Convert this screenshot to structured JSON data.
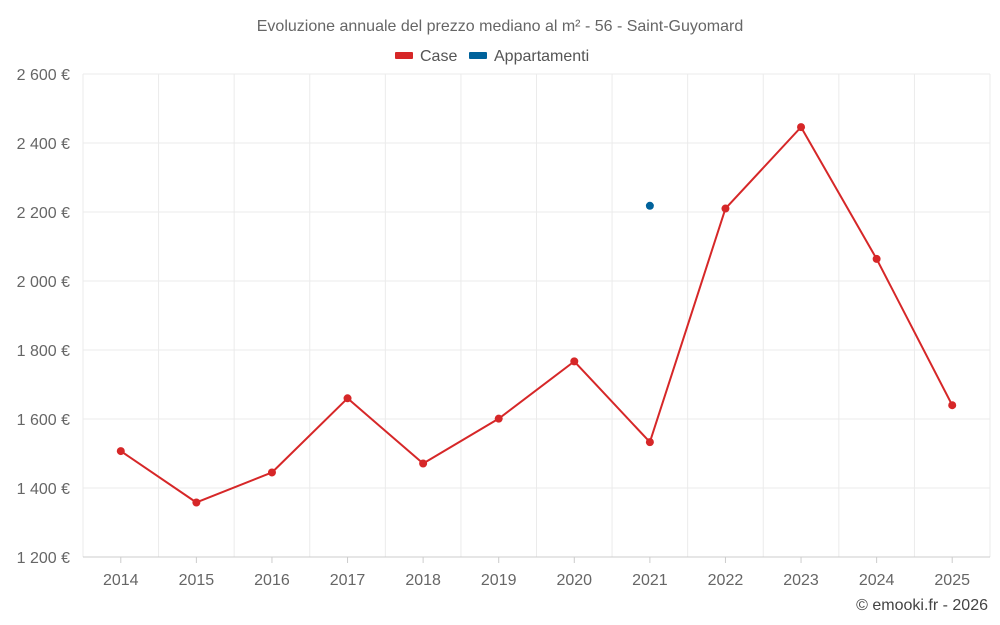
{
  "chart_data": {
    "type": "line",
    "title": "Evoluzione annuale del prezzo mediano al m² - 56 - Saint-Guyomard",
    "xlabel": "",
    "ylabel": "",
    "categories": [
      "2014",
      "2015",
      "2016",
      "2017",
      "2018",
      "2019",
      "2020",
      "2021",
      "2022",
      "2023",
      "2024",
      "2025"
    ],
    "ylim": [
      1200,
      2600
    ],
    "yticks": [
      1200,
      1400,
      1600,
      1800,
      2000,
      2200,
      2400,
      2600
    ],
    "ytick_labels": [
      "1 200 €",
      "1 400 €",
      "1 600 €",
      "1 800 €",
      "2 000 €",
      "2 200 €",
      "2 400 €",
      "2 600 €"
    ],
    "grid": true,
    "legend_position": "top-center",
    "series": [
      {
        "name": "Case",
        "color": "#d62728",
        "values": [
          1507,
          1358,
          1445,
          1660,
          1471,
          1601,
          1767,
          1533,
          2210,
          2446,
          2064,
          1640
        ]
      },
      {
        "name": "Appartamenti",
        "color": "#00629b",
        "values": [
          null,
          null,
          null,
          null,
          null,
          null,
          null,
          2218,
          null,
          null,
          null,
          null
        ]
      }
    ]
  },
  "credit": "© emooki.fr - 2026"
}
